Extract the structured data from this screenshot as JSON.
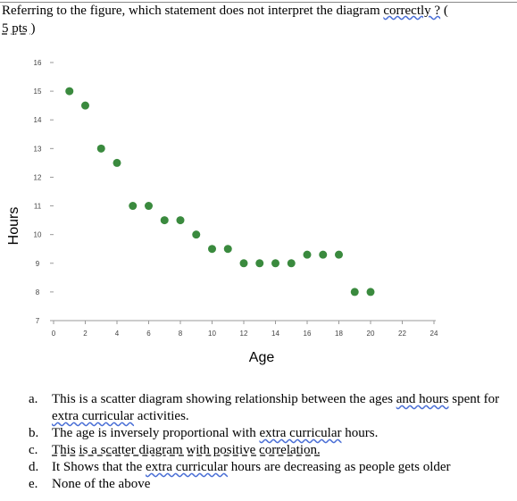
{
  "question": {
    "text_before": "Referring to the figure, which statement does not interpret the diagram ",
    "text_link": "correctly ?",
    "text_after": " (",
    "points": "5 pts )"
  },
  "chart_data": {
    "type": "scatter",
    "xlabel": "Age",
    "ylabel": "Hours",
    "xlim": [
      0,
      24
    ],
    "ylim": [
      7,
      16
    ],
    "xticks": [
      "0",
      "2",
      "4",
      "6",
      "8",
      "10",
      "12",
      "14",
      "16",
      "18",
      "20",
      "22",
      "24"
    ],
    "yticks": [
      "7",
      "8",
      "9",
      "10",
      "11",
      "12",
      "13",
      "14",
      "15",
      "16"
    ],
    "color": "#3a8a3e",
    "points": [
      {
        "x": 1,
        "y": 15
      },
      {
        "x": 2,
        "y": 14.5
      },
      {
        "x": 3,
        "y": 13
      },
      {
        "x": 4,
        "y": 12.5
      },
      {
        "x": 5,
        "y": 11
      },
      {
        "x": 6,
        "y": 11
      },
      {
        "x": 7,
        "y": 10.5
      },
      {
        "x": 8,
        "y": 10.5
      },
      {
        "x": 9,
        "y": 10
      },
      {
        "x": 10,
        "y": 9.5
      },
      {
        "x": 11,
        "y": 9.5
      },
      {
        "x": 12,
        "y": 9
      },
      {
        "x": 13,
        "y": 9
      },
      {
        "x": 14,
        "y": 9
      },
      {
        "x": 15,
        "y": 9
      },
      {
        "x": 16,
        "y": 9.3
      },
      {
        "x": 17,
        "y": 9.3
      },
      {
        "x": 18,
        "y": 9.3
      },
      {
        "x": 19,
        "y": 8
      },
      {
        "x": 20,
        "y": 8
      }
    ]
  },
  "options": [
    {
      "letter": "a.",
      "parts": [
        {
          "t": "This is a scatter diagram showing relationship between the ages "
        },
        {
          "t": "and  hours",
          "u": "wavy"
        },
        {
          "t": " spent for "
        },
        {
          "t": "extra curricular",
          "u": "wavy"
        },
        {
          "t": " activities."
        }
      ]
    },
    {
      "letter": "b.",
      "parts": [
        {
          "t": "The age is inversely proportional with "
        },
        {
          "t": "extra curricular",
          "u": "wavy"
        },
        {
          "t": " hours."
        }
      ]
    },
    {
      "letter": "c.",
      "parts": [
        {
          "t": "This is a scatter diagram with positive correlation.",
          "u": "dash"
        }
      ]
    },
    {
      "letter": "d.",
      "parts": [
        {
          "t": "It Shows that the "
        },
        {
          "t": "extra curricular",
          "u": "wavy"
        },
        {
          "t": " hours are decreasing as people gets older"
        }
      ]
    },
    {
      "letter": "e.",
      "parts": [
        {
          "t": "None of the above"
        }
      ]
    }
  ]
}
